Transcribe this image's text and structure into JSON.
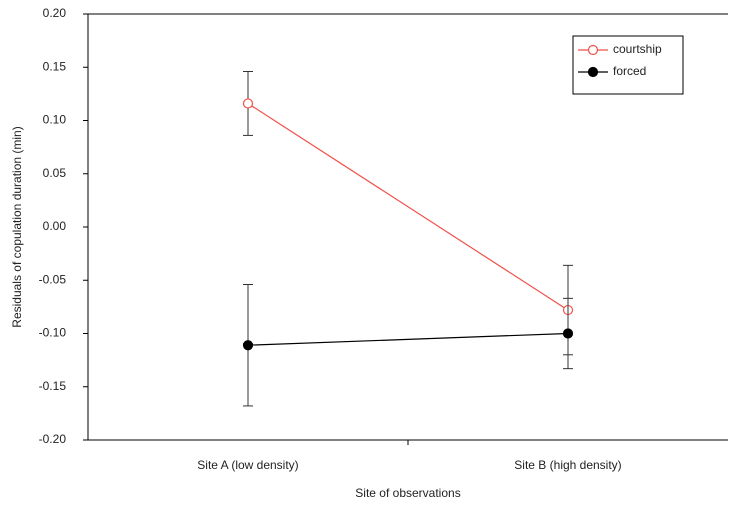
{
  "chart_data": {
    "type": "line",
    "x_label": "Site of observations",
    "y_label": "Residuals of copulation duration (min)",
    "categories": [
      "Site A (low density)",
      "Site B (high density)"
    ],
    "series": [
      {
        "name": "courtship",
        "color": "#f0504a",
        "marker_fill": "#ffffff",
        "values": [
          0.116,
          -0.078
        ],
        "errors": [
          0.03,
          0.042
        ]
      },
      {
        "name": "forced",
        "color": "#000000",
        "marker_fill": "#000000",
        "values": [
          -0.111,
          -0.1
        ],
        "errors": [
          0.057,
          0.033
        ]
      }
    ],
    "ylim": [
      -0.2,
      0.2
    ],
    "yticks": [
      {
        "value": -0.2,
        "label": "-0.20"
      },
      {
        "value": -0.15,
        "label": "-0.15"
      },
      {
        "value": -0.1,
        "label": "-0.10"
      },
      {
        "value": -0.05,
        "label": "-0.05"
      },
      {
        "value": 0,
        "label": "0.00"
      },
      {
        "value": 0.05,
        "label": "0.05"
      },
      {
        "value": 0.1,
        "label": "0.10"
      },
      {
        "value": 0.15,
        "label": "0.15"
      },
      {
        "value": 0.2,
        "label": "0.20"
      }
    ],
    "legend": "top-right"
  }
}
